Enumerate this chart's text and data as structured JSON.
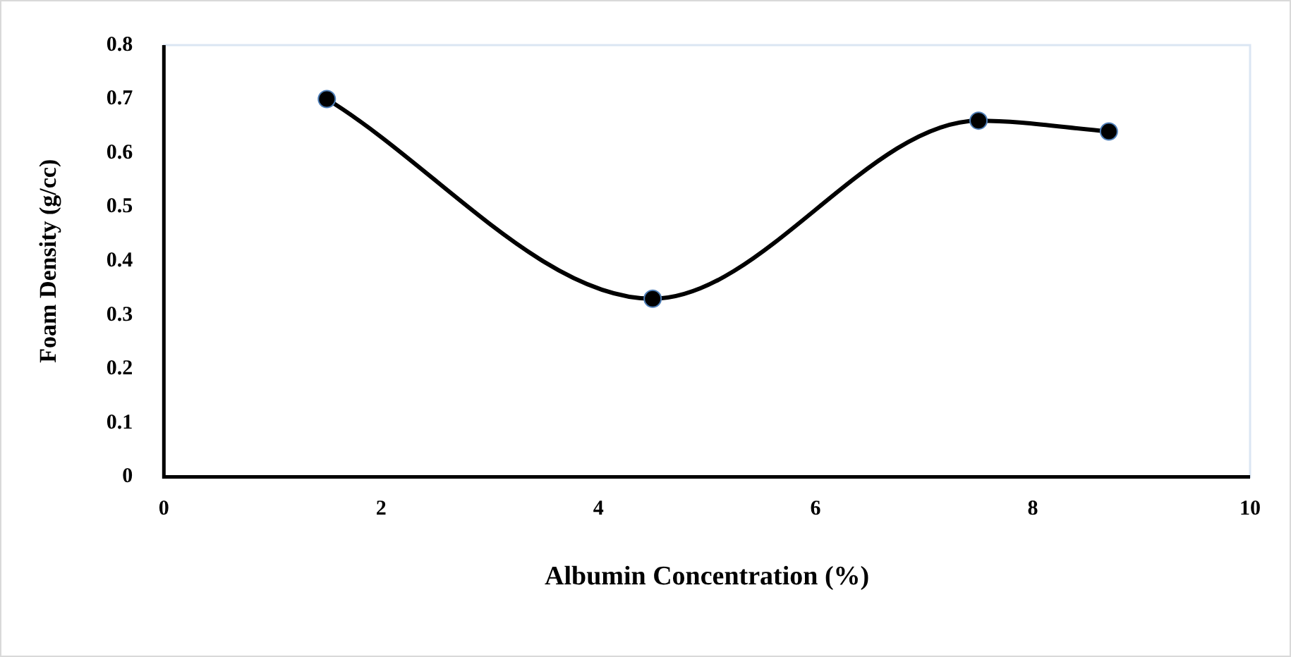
{
  "chart_data": {
    "type": "line",
    "xlabel": "Albumin Concentration (%)",
    "ylabel": "Foam Density (g/cc)",
    "x": [
      1.5,
      4.5,
      7.5,
      8.7
    ],
    "series": [
      {
        "color": "#000000",
        "values": [
          0.7,
          0.33,
          0.66,
          0.64
        ]
      }
    ],
    "xlim": [
      0,
      10
    ],
    "xticks": [
      0,
      2,
      4,
      6,
      8,
      10
    ],
    "ylim": [
      0,
      0.8
    ],
    "yticks": [
      0,
      0.1,
      0.2,
      0.3,
      0.4,
      0.5,
      0.6,
      0.7,
      0.8
    ],
    "grid": false,
    "legend": false,
    "marker": "circle",
    "line_style": "solid"
  }
}
